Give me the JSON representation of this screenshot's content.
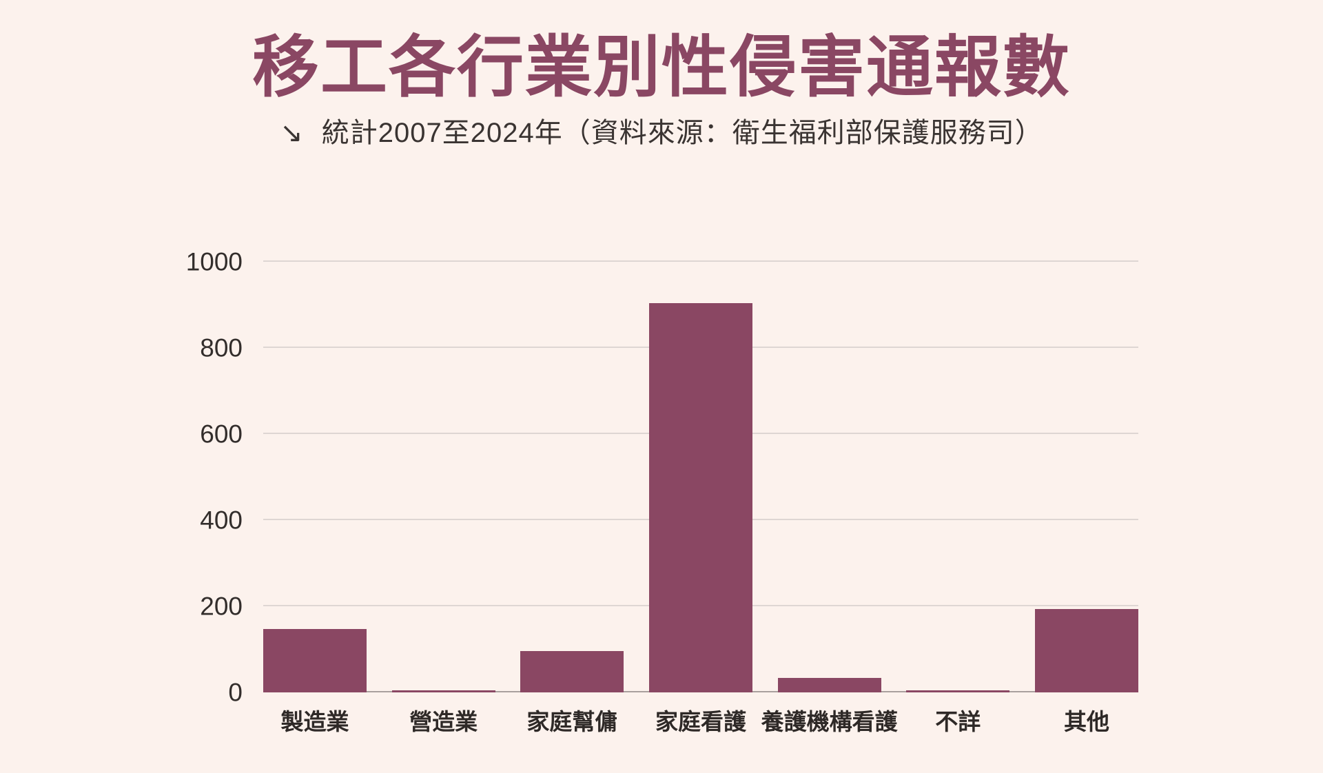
{
  "page": {
    "background": "#fcf2ed",
    "accent": "#8a4763"
  },
  "header": {
    "title": "移工各行業別性侵害通報數",
    "subtitle_arrow": "↘",
    "subtitle": "統計2007至2024年（資料來源：衛生福利部保護服務司）"
  },
  "chart_data": {
    "type": "bar",
    "title": "移工各行業別性侵害通報數",
    "subtitle": "統計2007至2024年（資料來源：衛生福利部保護服務司）",
    "categories": [
      "製造業",
      "營造業",
      "家庭幫傭",
      "家庭看護",
      "養護機構看護",
      "不詳",
      "其他"
    ],
    "values": [
      148,
      5,
      96,
      904,
      34,
      5,
      194
    ],
    "xlabel": "",
    "ylabel": "",
    "ylim": [
      0,
      1000
    ],
    "yticks": [
      0,
      200,
      400,
      600,
      800,
      1000
    ],
    "grid": true,
    "legend": false,
    "bar_color": "#8a4763",
    "gridline_color": "#ded6d3",
    "axis_line_color": "#a9a09e"
  }
}
